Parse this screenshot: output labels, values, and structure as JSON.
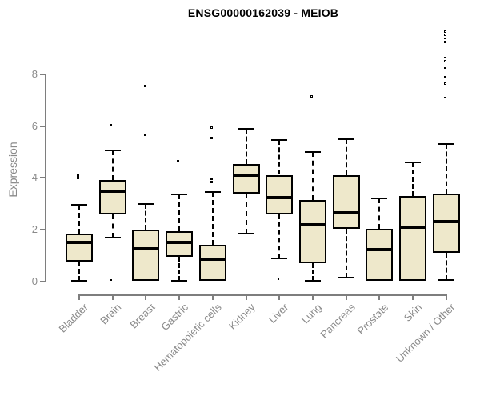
{
  "title": "ENSG00000162039 - MEIOB",
  "chart_data": {
    "type": "boxplot",
    "title": "ENSG00000162039 - MEIOB",
    "xlabel": "",
    "ylabel": "Expression",
    "ylim": [
      0,
      9.8
    ],
    "yticks": [
      0,
      2,
      4,
      6,
      8
    ],
    "grid": false,
    "legend": false,
    "categories": [
      "Bladder",
      "Brain",
      "Breast",
      "Gastric",
      "Hematopoietic cells",
      "Kidney",
      "Liver",
      "Lung",
      "Pancreas",
      "Prostate",
      "Skin",
      "Unknown / Other"
    ],
    "series": [
      {
        "name": "Bladder",
        "whisker_low": 0.02,
        "q1": 0.78,
        "median": 1.5,
        "q3": 1.85,
        "whisker_high": 2.95,
        "outliers": [
          3.95,
          4.05
        ]
      },
      {
        "name": "Brain",
        "whisker_low": 1.7,
        "q1": 2.6,
        "median": 3.5,
        "q3": 3.92,
        "whisker_high": 5.05,
        "outliers": [
          0.02,
          6.0
        ]
      },
      {
        "name": "Breast",
        "whisker_low": null,
        "q1": 0.02,
        "median": 1.28,
        "q3": 2.0,
        "whisker_high": 3.0,
        "outliers": [
          5.6,
          7.5
        ]
      },
      {
        "name": "Gastric",
        "whisker_low": 0.02,
        "q1": 0.95,
        "median": 1.5,
        "q3": 1.93,
        "whisker_high": 3.35,
        "outliers": [
          4.6
        ]
      },
      {
        "name": "Hematopoietic cells",
        "whisker_low": null,
        "q1": 0.02,
        "median": 0.85,
        "q3": 1.43,
        "whisker_high": 3.45,
        "outliers": [
          3.8,
          3.9,
          5.5,
          5.9
        ]
      },
      {
        "name": "Kidney",
        "whisker_low": 1.85,
        "q1": 3.4,
        "median": 4.12,
        "q3": 4.55,
        "whisker_high": 5.9,
        "outliers": []
      },
      {
        "name": "Liver",
        "whisker_low": 0.9,
        "q1": 2.58,
        "median": 3.25,
        "q3": 4.12,
        "whisker_high": 5.45,
        "outliers": [
          0.05
        ]
      },
      {
        "name": "Lung",
        "whisker_low": 0.02,
        "q1": 0.7,
        "median": 2.2,
        "q3": 3.15,
        "whisker_high": 5.0,
        "outliers": [
          7.1
        ]
      },
      {
        "name": "Pancreas",
        "whisker_low": 0.15,
        "q1": 2.05,
        "median": 2.65,
        "q3": 4.12,
        "whisker_high": 5.5,
        "outliers": []
      },
      {
        "name": "Prostate",
        "whisker_low": null,
        "q1": 0.02,
        "median": 1.25,
        "q3": 2.05,
        "whisker_high": 3.2,
        "outliers": []
      },
      {
        "name": "Skin",
        "whisker_low": null,
        "q1": 0.02,
        "median": 2.1,
        "q3": 3.3,
        "whisker_high": 4.6,
        "outliers": []
      },
      {
        "name": "Unknown / Other",
        "whisker_low": 0.05,
        "q1": 1.1,
        "median": 2.3,
        "q3": 3.38,
        "whisker_high": 5.3,
        "outliers": [
          7.05,
          7.6,
          7.85,
          8.2,
          8.45,
          8.6,
          9.2,
          9.33,
          9.47,
          9.6
        ]
      }
    ],
    "colors": {
      "box_fill": "#EEE8CB",
      "box_border": "#000000",
      "axis": "#7E7E7E",
      "tick_text": "#8A8A8A",
      "title_text": "#000000"
    }
  }
}
